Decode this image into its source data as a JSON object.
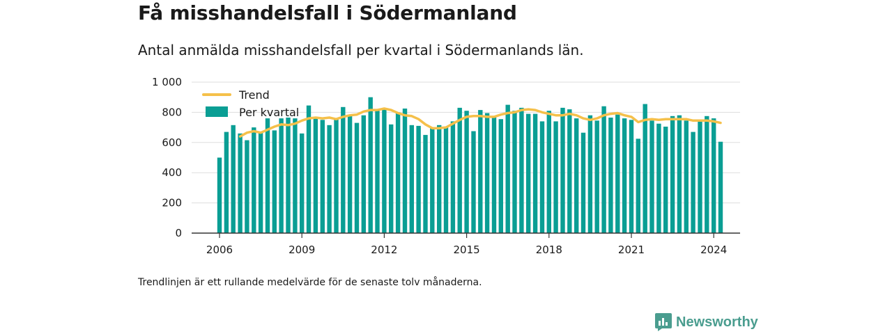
{
  "title": "Få misshandelsfall i Södermanland",
  "subtitle": "Antal anmälda misshandelsfall per kvartal i Södermanlands län.",
  "footnote": "Trendlinjen är ett rullande medelvärde för de senaste tolv månaderna.",
  "brand": {
    "name": "Newsworthy",
    "icon": "newsworthy-logo-icon",
    "color": "#4a9d8f"
  },
  "colors": {
    "bars": "#0a9e94",
    "trend": "#f5c04a",
    "grid": "#dddddd",
    "axis": "#333333"
  },
  "chart_data": {
    "type": "bar",
    "ylim": [
      0,
      1000
    ],
    "y_ticks": [
      "0",
      "200",
      "400",
      "600",
      "800",
      "1 000"
    ],
    "y_tick_values": [
      0,
      200,
      400,
      600,
      800,
      1000
    ],
    "x_ticks": [
      "2006",
      "2009",
      "2012",
      "2015",
      "2018",
      "2021",
      "2024"
    ],
    "x_tick_values": [
      2006,
      2009,
      2012,
      2015,
      2018,
      2021,
      2024
    ],
    "grid": true,
    "legend": {
      "placement": "top-left"
    },
    "start_year": 2006,
    "series": [
      {
        "name": "Per kvartal",
        "type": "bar",
        "values": [
          500,
          670,
          715,
          660,
          615,
          700,
          670,
          760,
          680,
          760,
          765,
          760,
          660,
          845,
          760,
          750,
          715,
          760,
          835,
          775,
          730,
          780,
          900,
          810,
          820,
          720,
          800,
          825,
          715,
          710,
          650,
          700,
          715,
          700,
          740,
          830,
          810,
          675,
          815,
          795,
          770,
          755,
          850,
          810,
          830,
          790,
          790,
          740,
          810,
          740,
          830,
          820,
          760,
          665,
          780,
          745,
          840,
          765,
          785,
          760,
          750,
          625,
          855,
          745,
          725,
          705,
          775,
          780,
          745,
          670,
          745,
          775,
          760,
          605
        ]
      },
      {
        "name": "Trend",
        "type": "line",
        "values": [
          null,
          null,
          null,
          640,
          665,
          675,
          665,
          685,
          705,
          720,
          715,
          725,
          745,
          760,
          765,
          760,
          765,
          755,
          770,
          780,
          785,
          805,
          815,
          815,
          825,
          815,
          795,
          780,
          775,
          755,
          720,
          695,
          695,
          700,
          725,
          750,
          770,
          775,
          775,
          770,
          770,
          785,
          795,
          800,
          815,
          820,
          815,
          800,
          790,
          780,
          780,
          790,
          780,
          760,
          750,
          760,
          780,
          790,
          795,
          780,
          770,
          735,
          750,
          755,
          750,
          755,
          755,
          755,
          755,
          745,
          745,
          745,
          740,
          730
        ]
      }
    ]
  }
}
